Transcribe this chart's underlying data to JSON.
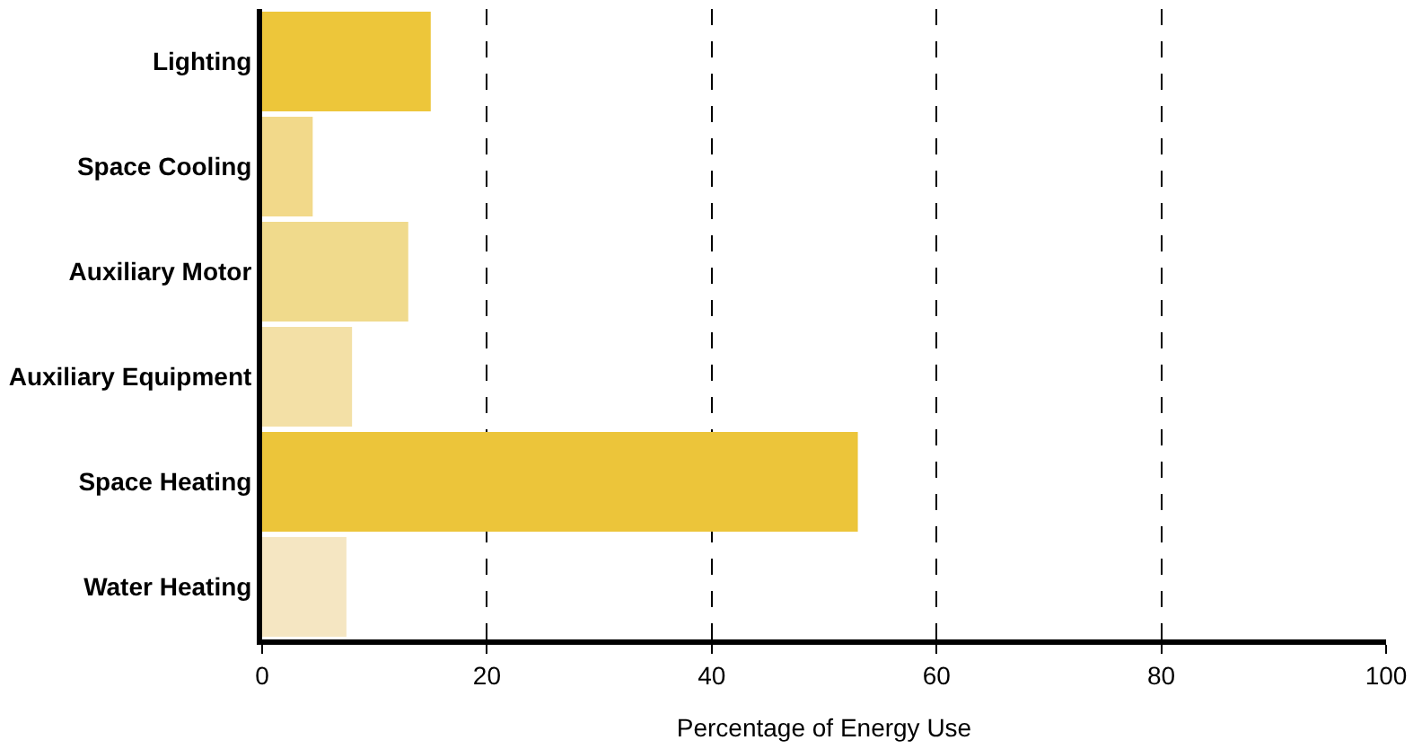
{
  "chart_data": {
    "type": "bar",
    "orientation": "horizontal",
    "xlabel": "Percentage of Energy Use",
    "categories": [
      "Lighting",
      "Space Cooling",
      "Auxiliary Motor",
      "Auxiliary Equipment",
      "Space Heating",
      "Water Heating"
    ],
    "values": [
      15,
      4.5,
      13,
      8,
      53,
      7.5
    ],
    "colors": [
      "#edc63a",
      "#f2d98a",
      "#f0da8c",
      "#f3e0a6",
      "#ecc53a",
      "#f5e6c2"
    ],
    "xlim": [
      0,
      100
    ],
    "xticks": [
      0,
      20,
      40,
      60,
      80,
      100
    ],
    "grid": "x"
  }
}
